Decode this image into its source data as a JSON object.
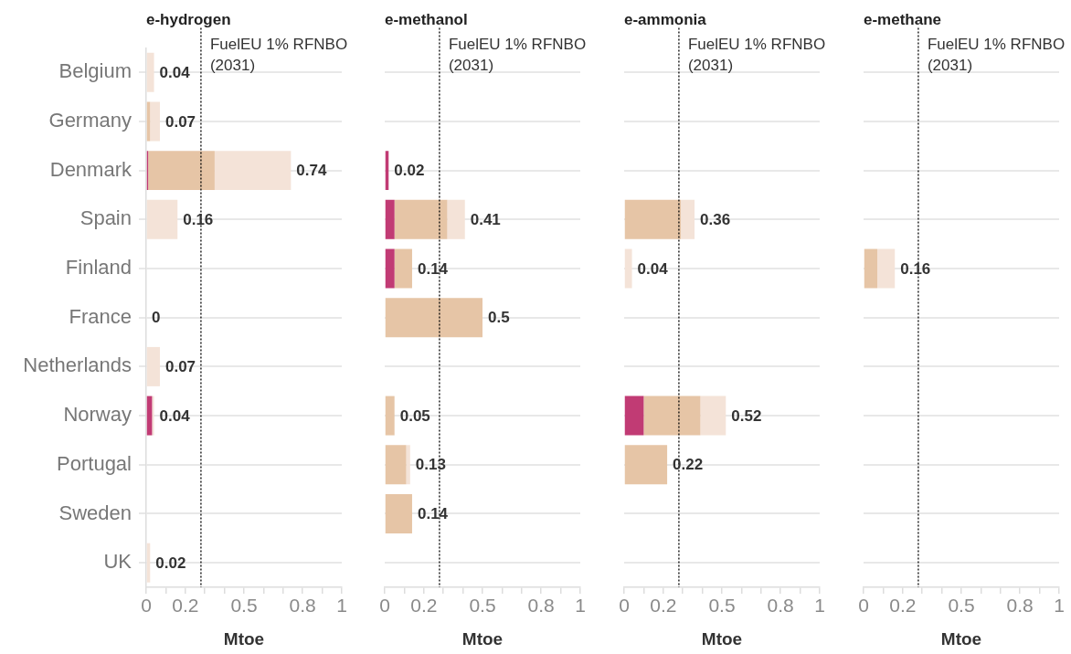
{
  "chart_data": [
    {
      "type": "bar",
      "title": "e-hydrogen",
      "xlabel": "Mtoe",
      "orientation": "horizontal",
      "stacked": true,
      "grid": "y",
      "categories": [
        "Belgium",
        "Germany",
        "Denmark",
        "Spain",
        "Finland",
        "France",
        "Netherlands",
        "Norway",
        "Portugal",
        "Sweden",
        "UK"
      ],
      "series": [
        {
          "color": "#c13b74",
          "values": [
            null,
            null,
            0.01,
            null,
            null,
            null,
            null,
            0.03,
            null,
            null,
            null
          ]
        },
        {
          "color": "#e6c5a6",
          "values": [
            null,
            0.02,
            0.34,
            null,
            null,
            null,
            null,
            null,
            null,
            null,
            null
          ]
        },
        {
          "color": "#f4e3d8",
          "values": [
            0.04,
            0.05,
            0.39,
            0.16,
            null,
            0,
            0.07,
            0.01,
            null,
            null,
            0.02
          ]
        }
      ],
      "totals": [
        "0.04",
        "0.07",
        "0.74",
        "0.16",
        null,
        "0",
        "0.07",
        "0.04",
        null,
        null,
        "0.02"
      ],
      "xlim": [
        0,
        1
      ],
      "xticks": [
        0,
        {
          "value": 0.1,
          "label": null
        },
        0.2,
        {
          "value": 0.3,
          "label": null
        },
        {
          "value": 0.4,
          "label": null
        },
        0.5,
        {
          "value": 0.6,
          "label": null
        },
        {
          "value": 0.7,
          "label": null
        },
        0.8,
        {
          "value": 0.9,
          "label": null
        },
        1
      ],
      "ref_lines": [
        {
          "axis": "x",
          "value": 0.28,
          "label": "FuelEU 1% RFNBO (2031)",
          "color": "#000000",
          "line_style": "dotted"
        }
      ]
    },
    {
      "type": "bar",
      "title": "e-methanol",
      "xlabel": "Mtoe",
      "orientation": "horizontal",
      "stacked": true,
      "grid": "y",
      "tick_labels": "x",
      "categories": [
        null,
        null,
        null,
        null,
        null,
        null,
        null,
        null,
        null,
        null,
        null
      ],
      "series": [
        {
          "color": "#c13b74",
          "values": [
            null,
            null,
            0.02,
            0.05,
            0.05,
            null,
            null,
            null,
            null,
            null,
            null
          ]
        },
        {
          "color": "#e6c5a6",
          "values": [
            null,
            null,
            null,
            0.27,
            0.09,
            0.5,
            null,
            0.05,
            0.11,
            0.14,
            null
          ]
        },
        {
          "color": "#f4e3d8",
          "values": [
            null,
            null,
            null,
            0.09,
            null,
            null,
            null,
            null,
            0.02,
            null,
            null
          ]
        }
      ],
      "totals": [
        null,
        null,
        "0.02",
        "0.41",
        "0.14",
        "0.5",
        null,
        "0.05",
        "0.13",
        "0.14",
        null
      ],
      "xlim": [
        0,
        1
      ],
      "xticks": [
        0,
        {
          "value": 0.1,
          "label": null
        },
        0.2,
        {
          "value": 0.3,
          "label": null
        },
        {
          "value": 0.4,
          "label": null
        },
        0.5,
        {
          "value": 0.6,
          "label": null
        },
        {
          "value": 0.7,
          "label": null
        },
        0.8,
        {
          "value": 0.9,
          "label": null
        },
        1
      ],
      "ref_lines": [
        {
          "axis": "x",
          "value": 0.28,
          "label": "FuelEU 1% RFNBO (2031)",
          "color": "#000000",
          "line_style": "dotted"
        }
      ]
    },
    {
      "type": "bar",
      "title": "e-ammonia",
      "xlabel": "Mtoe",
      "orientation": "horizontal",
      "stacked": true,
      "grid": "y",
      "tick_labels": "x",
      "categories": [
        null,
        null,
        null,
        null,
        null,
        null,
        null,
        null,
        null,
        null,
        null
      ],
      "series": [
        {
          "color": "#c13b74",
          "values": [
            null,
            null,
            null,
            null,
            null,
            null,
            null,
            0.1,
            null,
            null,
            null
          ]
        },
        {
          "color": "#e6c5a6",
          "values": [
            null,
            null,
            null,
            0.29,
            null,
            null,
            null,
            0.29,
            0.22,
            null,
            null
          ]
        },
        {
          "color": "#f4e3d8",
          "values": [
            null,
            null,
            null,
            0.07,
            0.04,
            null,
            null,
            0.13,
            null,
            null,
            null
          ]
        }
      ],
      "totals": [
        null,
        null,
        null,
        "0.36",
        "0.04",
        null,
        null,
        "0.52",
        "0.22",
        null,
        null
      ],
      "xlim": [
        0,
        1
      ],
      "xticks": [
        0,
        {
          "value": 0.1,
          "label": null
        },
        0.2,
        {
          "value": 0.3,
          "label": null
        },
        {
          "value": 0.4,
          "label": null
        },
        0.5,
        {
          "value": 0.6,
          "label": null
        },
        {
          "value": 0.7,
          "label": null
        },
        0.8,
        {
          "value": 0.9,
          "label": null
        },
        1
      ],
      "ref_lines": [
        {
          "axis": "x",
          "value": 0.28,
          "label": "FuelEU 1% RFNBO (2031)",
          "color": "#000000",
          "line_style": "dotted"
        }
      ]
    },
    {
      "type": "bar",
      "title": "e-methane",
      "xlabel": "Mtoe",
      "orientation": "horizontal",
      "stacked": true,
      "grid": "y",
      "tick_labels": "x",
      "categories": [
        null,
        null,
        null,
        null,
        null,
        null,
        null,
        null,
        null,
        null,
        null
      ],
      "series": [
        {
          "color": "#c13b74",
          "values": [
            null,
            null,
            null,
            null,
            null,
            null,
            null,
            null,
            null,
            null,
            null
          ]
        },
        {
          "color": "#e6c5a6",
          "values": [
            null,
            null,
            null,
            null,
            0.07,
            null,
            null,
            null,
            null,
            null,
            null
          ]
        },
        {
          "color": "#f4e3d8",
          "values": [
            null,
            null,
            null,
            null,
            0.09,
            null,
            null,
            null,
            null,
            null,
            null
          ]
        }
      ],
      "totals": [
        null,
        null,
        null,
        null,
        "0.16",
        null,
        null,
        null,
        null,
        null,
        null
      ],
      "xlim": [
        0,
        1
      ],
      "xticks": [
        0,
        {
          "value": 0.1,
          "label": null
        },
        0.2,
        {
          "value": 0.3,
          "label": null
        },
        {
          "value": 0.4,
          "label": null
        },
        0.5,
        {
          "value": 0.6,
          "label": null
        },
        {
          "value": 0.7,
          "label": null
        },
        0.8,
        {
          "value": 0.9,
          "label": null
        },
        1
      ],
      "ref_lines": [
        {
          "axis": "x",
          "value": 0.28,
          "label": "FuelEU 1% RFNBO (2031)",
          "color": "#000000",
          "line_style": "dotted"
        }
      ]
    }
  ]
}
